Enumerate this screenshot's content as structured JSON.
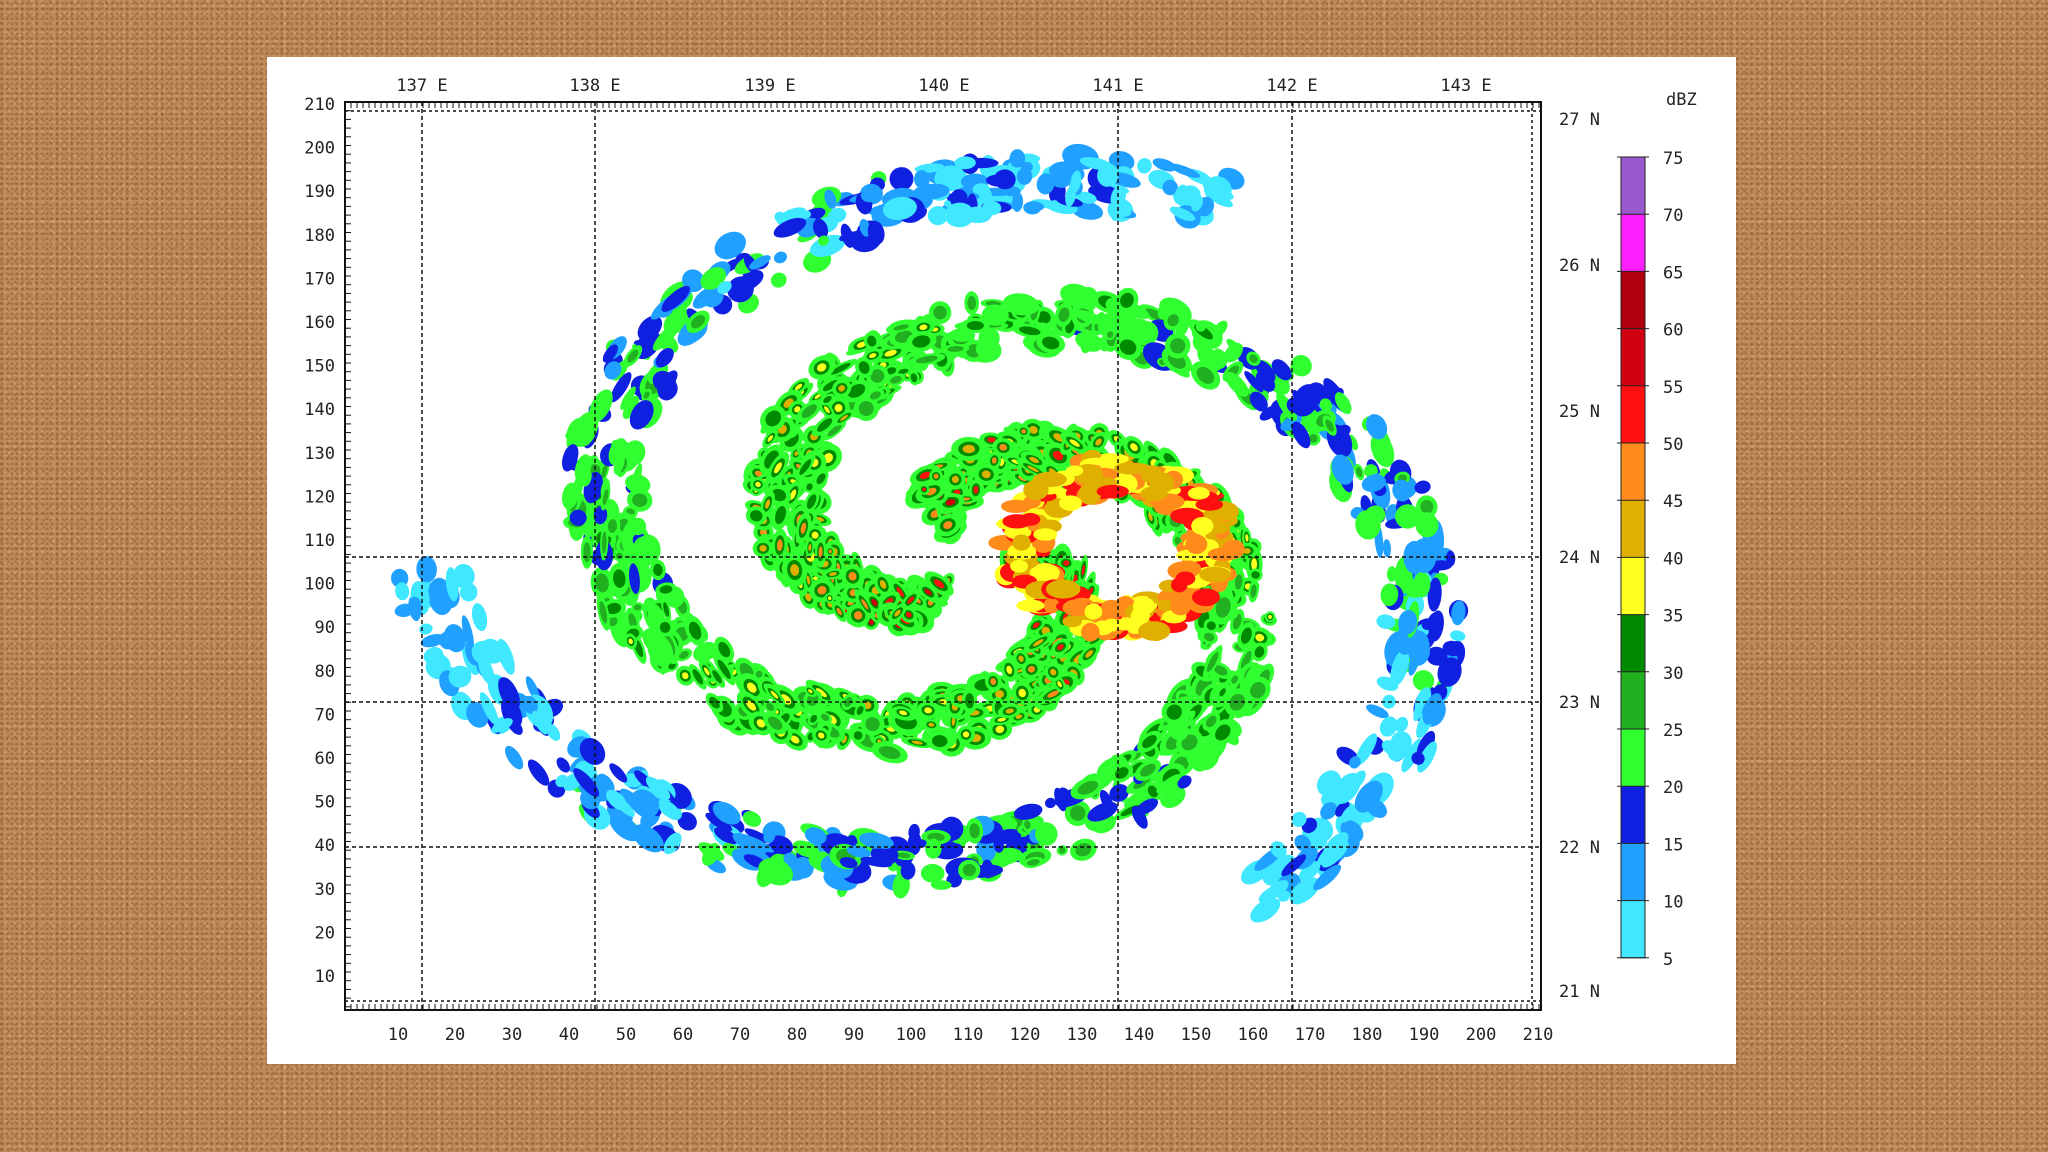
{
  "map": {
    "top_lon_labels": [
      "137 E",
      "138 E",
      "139 E",
      "140 E",
      "141 E",
      "142 E",
      "143 E"
    ],
    "right_lat_labels": [
      "27 N",
      "26 N",
      "25 N",
      "24 N",
      "23 N",
      "22 N",
      "21 N"
    ],
    "left_axis_labels": [
      "210",
      "200",
      "190",
      "180",
      "170",
      "160",
      "150",
      "140",
      "130",
      "120",
      "110",
      "100",
      "90",
      "80",
      "70",
      "60",
      "50",
      "40",
      "30",
      "20",
      "10"
    ],
    "bottom_axis_labels": [
      "10",
      "20",
      "30",
      "40",
      "50",
      "60",
      "70",
      "80",
      "90",
      "100",
      "110",
      "120",
      "130",
      "140",
      "150",
      "160",
      "170",
      "180",
      "190",
      "200",
      "210"
    ],
    "colorbar": {
      "unit": "dBZ",
      "labels": [
        "75",
        "70",
        "65",
        "60",
        "55",
        "50",
        "45",
        "40",
        "35",
        "30",
        "25",
        "20",
        "15",
        "10",
        "5"
      ],
      "colors": [
        "#9b59d0",
        "#ff20ff",
        "#b00010",
        "#d00010",
        "#ff1010",
        "#ff8c1a",
        "#e0b000",
        "#ffff20",
        "#008a00",
        "#20b020",
        "#30ff30",
        "#1020e0",
        "#20a0ff",
        "#40e8ff"
      ]
    }
  }
}
